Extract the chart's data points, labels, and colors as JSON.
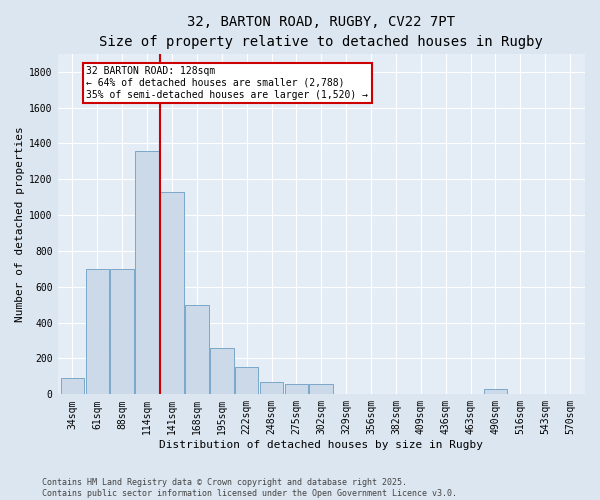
{
  "title": "32, BARTON ROAD, RUGBY, CV22 7PT",
  "subtitle": "Size of property relative to detached houses in Rugby",
  "xlabel": "Distribution of detached houses by size in Rugby",
  "ylabel": "Number of detached properties",
  "categories": [
    "34sqm",
    "61sqm",
    "88sqm",
    "114sqm",
    "141sqm",
    "168sqm",
    "195sqm",
    "222sqm",
    "248sqm",
    "275sqm",
    "302sqm",
    "329sqm",
    "356sqm",
    "382sqm",
    "409sqm",
    "436sqm",
    "463sqm",
    "490sqm",
    "516sqm",
    "543sqm",
    "570sqm"
  ],
  "values": [
    90,
    700,
    700,
    1360,
    1130,
    500,
    260,
    150,
    70,
    60,
    55,
    0,
    0,
    0,
    0,
    0,
    0,
    30,
    0,
    0,
    0
  ],
  "bar_color": "#ccd9e8",
  "bar_edge_color": "#6b9dc2",
  "marker_line_color": "#cc0000",
  "annotation_box_color": "#ffffff",
  "annotation_box_edge": "#cc0000",
  "marker_label": "32 BARTON ROAD: 128sqm",
  "annotation_line1": "← 64% of detached houses are smaller (2,788)",
  "annotation_line2": "35% of semi-detached houses are larger (1,520) →",
  "ylim": [
    0,
    1900
  ],
  "yticks": [
    0,
    200,
    400,
    600,
    800,
    1000,
    1200,
    1400,
    1600,
    1800
  ],
  "bg_color": "#dce6f0",
  "plot_bg_color": "#e4edf6",
  "grid_color": "#ffffff",
  "footer_line1": "Contains HM Land Registry data © Crown copyright and database right 2025.",
  "footer_line2": "Contains public sector information licensed under the Open Government Licence v3.0.",
  "title_fontsize": 10,
  "subtitle_fontsize": 9,
  "axis_label_fontsize": 8,
  "tick_fontsize": 7,
  "annotation_fontsize": 7,
  "footer_fontsize": 6
}
